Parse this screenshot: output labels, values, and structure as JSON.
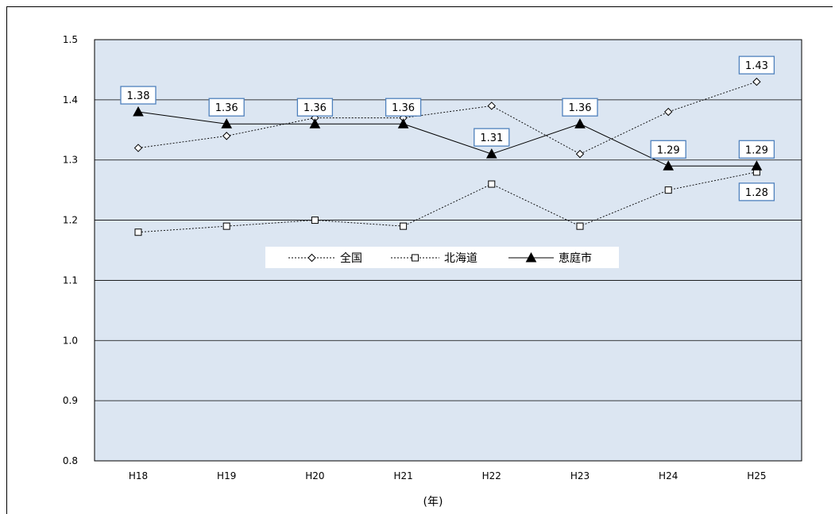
{
  "chart_data": {
    "type": "line",
    "categories": [
      "H18",
      "H19",
      "H20",
      "H21",
      "H22",
      "H23",
      "H24",
      "H25"
    ],
    "xlabel": "(年)",
    "ylabel": "",
    "ylim": [
      0.8,
      1.5
    ],
    "yticks": [
      "0.8",
      "0.9",
      "1.0",
      "1.1",
      "1.2",
      "1.3",
      "1.4",
      "1.5"
    ],
    "grid": true,
    "legend_position": "center",
    "series": [
      {
        "name": "全国",
        "values": [
          1.32,
          1.34,
          1.37,
          1.37,
          1.39,
          1.31,
          1.38,
          1.43
        ],
        "marker": "diamond-open",
        "line": "dotted",
        "labels": [
          "",
          "",
          "",
          "",
          "",
          "",
          "",
          "1.43"
        ]
      },
      {
        "name": "北海道",
        "values": [
          1.18,
          1.19,
          1.2,
          1.19,
          1.26,
          1.19,
          1.25,
          1.28
        ],
        "marker": "square-open",
        "line": "dotted",
        "labels": [
          "",
          "",
          "",
          "",
          "",
          "",
          "",
          "1.28"
        ]
      },
      {
        "name": "恵庭市",
        "values": [
          1.38,
          1.36,
          1.36,
          1.36,
          1.31,
          1.36,
          1.29,
          1.29
        ],
        "marker": "triangle-filled",
        "line": "solid",
        "labels": [
          "1.38",
          "1.36",
          "1.36",
          "1.36",
          "1.31",
          "1.36",
          "1.29",
          "1.29"
        ]
      }
    ],
    "colors": {
      "plot_bg": "#dce6f2",
      "grid": "#000000",
      "label_border": "#4f81bd",
      "line": "#000000"
    }
  }
}
